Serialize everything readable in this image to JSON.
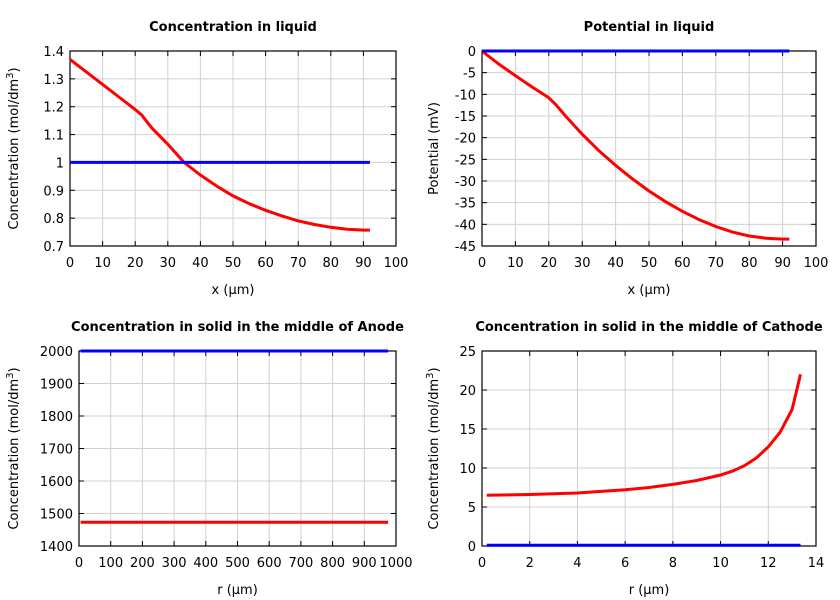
{
  "chart_data": [
    {
      "type": "line",
      "title": "Concentration in liquid",
      "xlabel": "x (µm)",
      "ylabel": "Concentration (mol/dm",
      "ylabel_sup": "3",
      "ylabel_end": ")",
      "xlim": [
        0,
        100
      ],
      "ylim": [
        0.7,
        1.4
      ],
      "xticks": [
        0,
        10,
        20,
        30,
        40,
        50,
        60,
        70,
        80,
        90,
        100
      ],
      "yticks": [
        0.7,
        0.8,
        0.9,
        1,
        1.1,
        1.2,
        1.3,
        1.4
      ],
      "grid": true,
      "series": [
        {
          "color": "#ff0000",
          "x": [
            0,
            5,
            10,
            15,
            20,
            22,
            25,
            30,
            35,
            40,
            45,
            50,
            55,
            60,
            65,
            70,
            75,
            80,
            85,
            90,
            92
          ],
          "y": [
            1.37,
            1.325,
            1.28,
            1.235,
            1.19,
            1.17,
            1.125,
            1.065,
            1.0,
            0.955,
            0.915,
            0.88,
            0.852,
            0.828,
            0.808,
            0.79,
            0.777,
            0.767,
            0.76,
            0.757,
            0.757
          ]
        },
        {
          "color": "#0000ff",
          "x": [
            0,
            92
          ],
          "y": [
            1.0,
            1.0
          ]
        }
      ]
    },
    {
      "type": "line",
      "title": "Potential in liquid",
      "xlabel": "x (µm)",
      "ylabel": "Potential (mV)",
      "xlim": [
        0,
        100
      ],
      "ylim": [
        -45,
        0
      ],
      "xticks": [
        0,
        10,
        20,
        30,
        40,
        50,
        60,
        70,
        80,
        90,
        100
      ],
      "yticks": [
        -45,
        -40,
        -35,
        -30,
        -25,
        -20,
        -15,
        -10,
        -5,
        0
      ],
      "grid": true,
      "series": [
        {
          "color": "#ff0000",
          "x": [
            0,
            5,
            10,
            15,
            20,
            22,
            25,
            30,
            35,
            40,
            45,
            50,
            55,
            60,
            65,
            70,
            75,
            80,
            85,
            90,
            92
          ],
          "y": [
            0,
            -3,
            -5.7,
            -8.3,
            -10.8,
            -12.3,
            -15,
            -19.2,
            -23,
            -26.4,
            -29.5,
            -32.3,
            -34.8,
            -37,
            -38.9,
            -40.5,
            -41.8,
            -42.7,
            -43.2,
            -43.4,
            -43.4
          ]
        },
        {
          "color": "#0000ff",
          "x": [
            0,
            92
          ],
          "y": [
            0,
            0
          ]
        }
      ]
    },
    {
      "type": "line",
      "title": "Concentration in solid in the middle of Anode",
      "xlabel": "r (µm)",
      "ylabel": "Concentration (mol/dm",
      "ylabel_sup": "3",
      "ylabel_end": ")",
      "xlim": [
        0,
        1000
      ],
      "ylim": [
        1400,
        2000
      ],
      "xticks": [
        0,
        100,
        200,
        300,
        400,
        500,
        600,
        700,
        800,
        900,
        1000
      ],
      "yticks": [
        1400,
        1500,
        1600,
        1700,
        1800,
        1900,
        2000
      ],
      "grid": true,
      "series": [
        {
          "color": "#ff0000",
          "x": [
            5,
            975
          ],
          "y": [
            1473,
            1473
          ]
        },
        {
          "color": "#0000ff",
          "x": [
            5,
            975
          ],
          "y": [
            2000,
            2000
          ]
        }
      ]
    },
    {
      "type": "line",
      "title": "Concentration in solid in the middle of Cathode",
      "xlabel": "r (µm)",
      "ylabel": "Concentration (mol/dm",
      "ylabel_sup": "3",
      "ylabel_end": ")",
      "xlim": [
        0,
        14
      ],
      "ylim": [
        0,
        25
      ],
      "xticks": [
        0,
        2,
        4,
        6,
        8,
        10,
        12,
        14
      ],
      "yticks": [
        0,
        5,
        10,
        15,
        20,
        25
      ],
      "grid": true,
      "series": [
        {
          "color": "#ff0000",
          "x": [
            0.2,
            2,
            4,
            6,
            7,
            8,
            9,
            10,
            10.5,
            11,
            11.5,
            12,
            12.5,
            13,
            13.35
          ],
          "y": [
            6.5,
            6.6,
            6.8,
            7.2,
            7.5,
            7.9,
            8.4,
            9.1,
            9.6,
            10.3,
            11.3,
            12.7,
            14.6,
            17.5,
            22
          ]
        },
        {
          "color": "#0000ff",
          "x": [
            0.2,
            13.35
          ],
          "y": [
            0.1,
            0.1
          ]
        }
      ]
    }
  ]
}
